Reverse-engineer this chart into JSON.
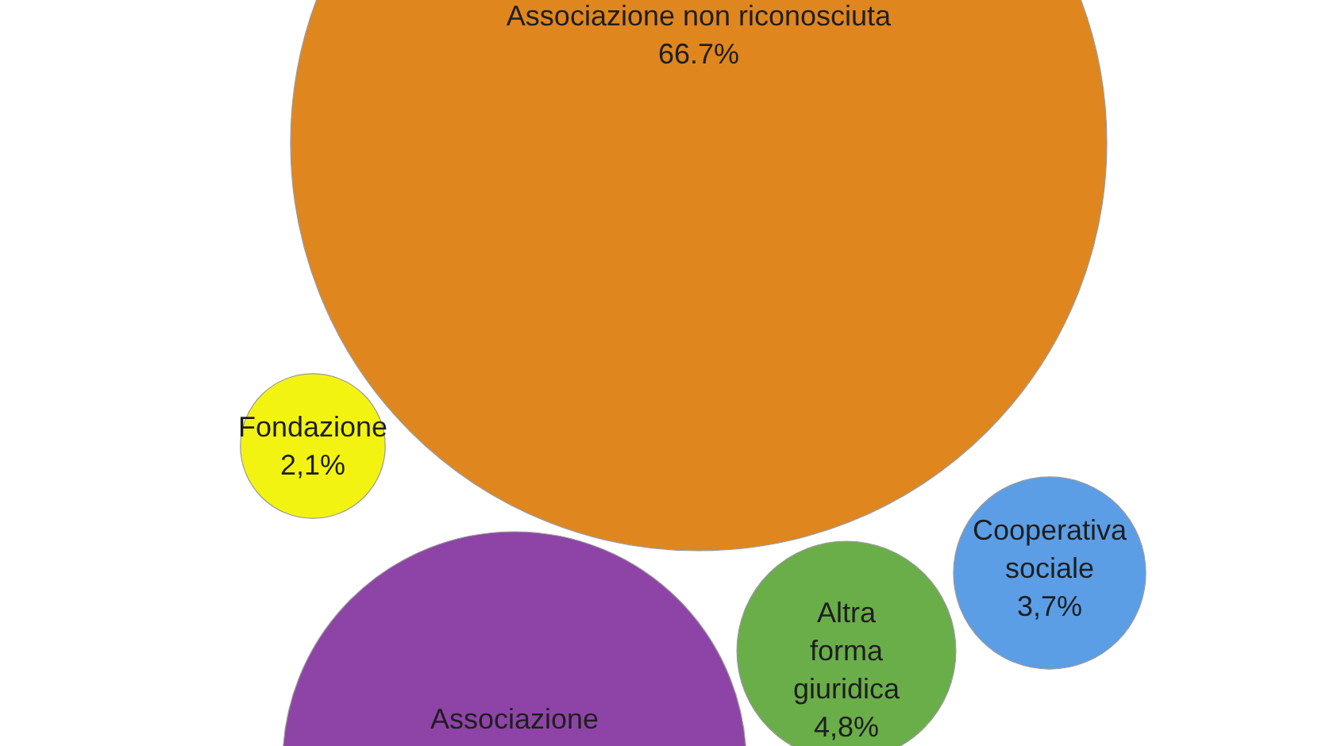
{
  "chart_data": {
    "type": "other",
    "categories": [
      "Associazione non riconosciuta",
      "Fondazione",
      "Associazione",
      "Altra forma giuridica",
      "Cooperativa sociale"
    ],
    "values": [
      66.7,
      2.1,
      null,
      4.8,
      3.7
    ],
    "value_labels": [
      "66.7%",
      "2,1%",
      null,
      "4,8%",
      "3,7%"
    ],
    "colors": [
      "#e0861f",
      "#f3f312",
      "#8e44a6",
      "#6aae4a",
      "#5b9ee6"
    ]
  }
}
